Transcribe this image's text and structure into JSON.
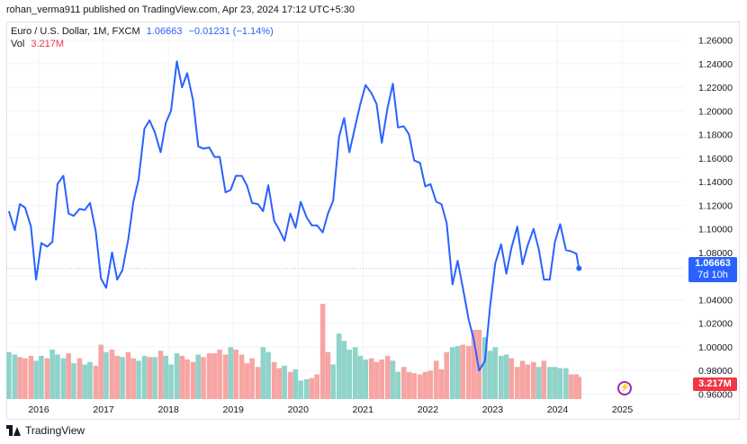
{
  "header": {
    "published": "rohan_verma911 published on TradingView.com, Apr 23, 2024 17:12 UTC+5:30"
  },
  "legend": {
    "symbol": "Euro / U.S. Dollar, 1M, FXCM",
    "price": "1.06663",
    "change": "−0.01231 (−1.14%)",
    "vol_label": "Vol",
    "vol_value": "3.217M"
  },
  "badges": {
    "last_price": "1.06663",
    "countdown": "7d 10h",
    "volume": "3.217M",
    "bolt_icon": "lightning-icon"
  },
  "footer": {
    "brand": "TradingView",
    "logo_icon": "tradingview-logo-icon"
  },
  "colors": {
    "line": "#2962ff",
    "vol_up": "#26a69a",
    "vol_down": "#ef5350",
    "accent": "#2962ff"
  },
  "chart_data": {
    "type": "line",
    "title": "Euro / U.S. Dollar, 1M, FXCM",
    "ylim": [
      0.955,
      1.275
    ],
    "y_ticks": [
      "1.26000",
      "1.24000",
      "1.22000",
      "1.20000",
      "1.18000",
      "1.16000",
      "1.14000",
      "1.12000",
      "1.10000",
      "1.08000",
      "1.06000",
      "1.04000",
      "1.02000",
      "1.00000",
      "0.98000",
      "0.96000"
    ],
    "y_tick_values": [
      1.26,
      1.24,
      1.22,
      1.2,
      1.18,
      1.16,
      1.14,
      1.12,
      1.1,
      1.08,
      1.06,
      1.04,
      1.02,
      1.0,
      0.98,
      0.96
    ],
    "x_ticks": [
      "2016",
      "2017",
      "2018",
      "2019",
      "2020",
      "2021",
      "2022",
      "2023",
      "2024",
      "2025"
    ],
    "x_tick_values": [
      2016,
      2017,
      2018,
      2019,
      2020,
      2021,
      2022,
      2023,
      2024,
      2025
    ],
    "x_range": [
      2015.5,
      2025.95
    ],
    "grid": true,
    "series": [
      {
        "values": [
          [
            2015.54,
            1.115
          ],
          [
            2015.63,
            1.099
          ],
          [
            2015.71,
            1.121
          ],
          [
            2015.79,
            1.118
          ],
          [
            2015.88,
            1.102
          ],
          [
            2015.96,
            1.057
          ],
          [
            2016.04,
            1.088
          ],
          [
            2016.13,
            1.085
          ],
          [
            2016.21,
            1.089
          ],
          [
            2016.29,
            1.138
          ],
          [
            2016.38,
            1.145
          ],
          [
            2016.46,
            1.113
          ],
          [
            2016.54,
            1.111
          ],
          [
            2016.63,
            1.117
          ],
          [
            2016.71,
            1.116
          ],
          [
            2016.79,
            1.122
          ],
          [
            2016.88,
            1.098
          ],
          [
            2016.96,
            1.058
          ],
          [
            2017.04,
            1.05
          ],
          [
            2017.13,
            1.08
          ],
          [
            2017.21,
            1.057
          ],
          [
            2017.29,
            1.065
          ],
          [
            2017.38,
            1.091
          ],
          [
            2017.46,
            1.123
          ],
          [
            2017.54,
            1.142
          ],
          [
            2017.63,
            1.185
          ],
          [
            2017.71,
            1.192
          ],
          [
            2017.79,
            1.182
          ],
          [
            2017.88,
            1.165
          ],
          [
            2017.96,
            1.19
          ],
          [
            2018.04,
            1.2
          ],
          [
            2018.13,
            1.242
          ],
          [
            2018.21,
            1.22
          ],
          [
            2018.29,
            1.232
          ],
          [
            2018.38,
            1.209
          ],
          [
            2018.46,
            1.17
          ],
          [
            2018.54,
            1.168
          ],
          [
            2018.63,
            1.169
          ],
          [
            2018.71,
            1.161
          ],
          [
            2018.79,
            1.161
          ],
          [
            2018.88,
            1.131
          ],
          [
            2018.96,
            1.133
          ],
          [
            2019.04,
            1.145
          ],
          [
            2019.13,
            1.145
          ],
          [
            2019.21,
            1.137
          ],
          [
            2019.29,
            1.122
          ],
          [
            2019.38,
            1.121
          ],
          [
            2019.46,
            1.115
          ],
          [
            2019.54,
            1.137
          ],
          [
            2019.63,
            1.107
          ],
          [
            2019.71,
            1.099
          ],
          [
            2019.79,
            1.09
          ],
          [
            2019.88,
            1.113
          ],
          [
            2019.96,
            1.101
          ],
          [
            2020.04,
            1.123
          ],
          [
            2020.13,
            1.11
          ],
          [
            2020.21,
            1.103
          ],
          [
            2020.29,
            1.103
          ],
          [
            2020.38,
            1.097
          ],
          [
            2020.46,
            1.113
          ],
          [
            2020.54,
            1.124
          ],
          [
            2020.63,
            1.178
          ],
          [
            2020.71,
            1.194
          ],
          [
            2020.79,
            1.165
          ],
          [
            2020.88,
            1.187
          ],
          [
            2020.96,
            1.206
          ],
          [
            2021.04,
            1.222
          ],
          [
            2021.13,
            1.215
          ],
          [
            2021.21,
            1.206
          ],
          [
            2021.29,
            1.173
          ],
          [
            2021.38,
            1.203
          ],
          [
            2021.46,
            1.223
          ],
          [
            2021.54,
            1.186
          ],
          [
            2021.63,
            1.187
          ],
          [
            2021.71,
            1.18
          ],
          [
            2021.79,
            1.158
          ],
          [
            2021.88,
            1.156
          ],
          [
            2021.96,
            1.136
          ],
          [
            2022.04,
            1.138
          ],
          [
            2022.13,
            1.123
          ],
          [
            2022.21,
            1.121
          ],
          [
            2022.29,
            1.105
          ],
          [
            2022.38,
            1.053
          ],
          [
            2022.46,
            1.073
          ],
          [
            2022.54,
            1.05
          ],
          [
            2022.63,
            1.023
          ],
          [
            2022.71,
            1.006
          ],
          [
            2022.79,
            0.98
          ],
          [
            2022.88,
            0.988
          ],
          [
            2022.96,
            1.034
          ],
          [
            2023.04,
            1.071
          ],
          [
            2023.13,
            1.087
          ],
          [
            2023.21,
            1.062
          ],
          [
            2023.29,
            1.084
          ],
          [
            2023.38,
            1.102
          ],
          [
            2023.46,
            1.07
          ],
          [
            2023.54,
            1.086
          ],
          [
            2023.63,
            1.1
          ],
          [
            2023.71,
            1.083
          ],
          [
            2023.79,
            1.057
          ],
          [
            2023.88,
            1.057
          ],
          [
            2023.96,
            1.089
          ],
          [
            2024.04,
            1.104
          ],
          [
            2024.13,
            1.082
          ],
          [
            2024.21,
            1.081
          ],
          [
            2024.29,
            1.079
          ],
          [
            2024.33,
            1.06663
          ]
        ]
      }
    ],
    "volume": {
      "label": "Vol",
      "last": "3.217M",
      "bars": [
        [
          2015.54,
          38,
          "u"
        ],
        [
          2015.63,
          36,
          "u"
        ],
        [
          2015.71,
          34,
          "d"
        ],
        [
          2015.79,
          33,
          "d"
        ],
        [
          2015.88,
          35,
          "d"
        ],
        [
          2015.96,
          31,
          "u"
        ],
        [
          2016.04,
          35,
          "u"
        ],
        [
          2016.13,
          33,
          "d"
        ],
        [
          2016.21,
          40,
          "u"
        ],
        [
          2016.29,
          36,
          "u"
        ],
        [
          2016.38,
          33,
          "u"
        ],
        [
          2016.46,
          37,
          "d"
        ],
        [
          2016.54,
          29,
          "u"
        ],
        [
          2016.63,
          33,
          "d"
        ],
        [
          2016.71,
          28,
          "u"
        ],
        [
          2016.79,
          30,
          "u"
        ],
        [
          2016.88,
          27,
          "d"
        ],
        [
          2016.96,
          44,
          "d"
        ],
        [
          2017.04,
          38,
          "u"
        ],
        [
          2017.13,
          40,
          "d"
        ],
        [
          2017.21,
          35,
          "d"
        ],
        [
          2017.29,
          34,
          "u"
        ],
        [
          2017.38,
          38,
          "d"
        ],
        [
          2017.46,
          33,
          "d"
        ],
        [
          2017.54,
          31,
          "u"
        ],
        [
          2017.63,
          35,
          "u"
        ],
        [
          2017.71,
          34,
          "d"
        ],
        [
          2017.79,
          34,
          "u"
        ],
        [
          2017.88,
          39,
          "d"
        ],
        [
          2017.96,
          35,
          "u"
        ],
        [
          2018.04,
          28,
          "u"
        ],
        [
          2018.13,
          37,
          "u"
        ],
        [
          2018.21,
          35,
          "d"
        ],
        [
          2018.29,
          32,
          "d"
        ],
        [
          2018.38,
          30,
          "d"
        ],
        [
          2018.46,
          36,
          "u"
        ],
        [
          2018.54,
          34,
          "d"
        ],
        [
          2018.63,
          37,
          "d"
        ],
        [
          2018.71,
          37,
          "d"
        ],
        [
          2018.79,
          40,
          "d"
        ],
        [
          2018.88,
          36,
          "d"
        ],
        [
          2018.96,
          42,
          "u"
        ],
        [
          2019.04,
          40,
          "d"
        ],
        [
          2019.13,
          36,
          "d"
        ],
        [
          2019.21,
          29,
          "d"
        ],
        [
          2019.29,
          33,
          "d"
        ],
        [
          2019.38,
          26,
          "d"
        ],
        [
          2019.46,
          42,
          "u"
        ],
        [
          2019.54,
          38,
          "u"
        ],
        [
          2019.63,
          30,
          "d"
        ],
        [
          2019.71,
          25,
          "d"
        ],
        [
          2019.79,
          27,
          "u"
        ],
        [
          2019.88,
          22,
          "d"
        ],
        [
          2019.96,
          24,
          "u"
        ],
        [
          2020.04,
          15,
          "u"
        ],
        [
          2020.13,
          16,
          "u"
        ],
        [
          2020.21,
          17,
          "d"
        ],
        [
          2020.29,
          20,
          "d"
        ],
        [
          2020.38,
          77,
          "d"
        ],
        [
          2020.46,
          38,
          "d"
        ],
        [
          2020.54,
          28,
          "u"
        ],
        [
          2020.63,
          53,
          "u"
        ],
        [
          2020.71,
          47,
          "u"
        ],
        [
          2020.79,
          40,
          "u"
        ],
        [
          2020.88,
          42,
          "u"
        ],
        [
          2020.96,
          35,
          "u"
        ],
        [
          2021.04,
          32,
          "u"
        ],
        [
          2021.13,
          33,
          "d"
        ],
        [
          2021.21,
          30,
          "d"
        ],
        [
          2021.29,
          32,
          "d"
        ],
        [
          2021.38,
          35,
          "d"
        ],
        [
          2021.46,
          31,
          "u"
        ],
        [
          2021.54,
          22,
          "u"
        ],
        [
          2021.63,
          26,
          "d"
        ],
        [
          2021.71,
          22,
          "d"
        ],
        [
          2021.79,
          21,
          "d"
        ],
        [
          2021.88,
          20,
          "d"
        ],
        [
          2021.96,
          22,
          "d"
        ],
        [
          2022.04,
          23,
          "d"
        ],
        [
          2022.13,
          31,
          "d"
        ],
        [
          2022.21,
          24,
          "d"
        ],
        [
          2022.29,
          38,
          "d"
        ],
        [
          2022.38,
          42,
          "u"
        ],
        [
          2022.46,
          43,
          "u"
        ],
        [
          2022.54,
          44,
          "d"
        ],
        [
          2022.63,
          43,
          "d"
        ],
        [
          2022.71,
          56,
          "d"
        ],
        [
          2022.79,
          56,
          "d"
        ],
        [
          2022.88,
          50,
          "u"
        ],
        [
          2022.96,
          39,
          "u"
        ],
        [
          2023.04,
          42,
          "u"
        ],
        [
          2023.13,
          35,
          "u"
        ],
        [
          2023.21,
          36,
          "u"
        ],
        [
          2023.29,
          33,
          "d"
        ],
        [
          2023.38,
          26,
          "d"
        ],
        [
          2023.46,
          31,
          "d"
        ],
        [
          2023.54,
          28,
          "d"
        ],
        [
          2023.63,
          30,
          "d"
        ],
        [
          2023.71,
          26,
          "u"
        ],
        [
          2023.79,
          31,
          "d"
        ],
        [
          2023.88,
          26,
          "u"
        ],
        [
          2023.96,
          26,
          "u"
        ],
        [
          2024.04,
          25,
          "u"
        ],
        [
          2024.13,
          25,
          "u"
        ],
        [
          2024.21,
          20,
          "d"
        ],
        [
          2024.29,
          20,
          "d"
        ],
        [
          2024.33,
          18,
          "d"
        ]
      ]
    }
  }
}
